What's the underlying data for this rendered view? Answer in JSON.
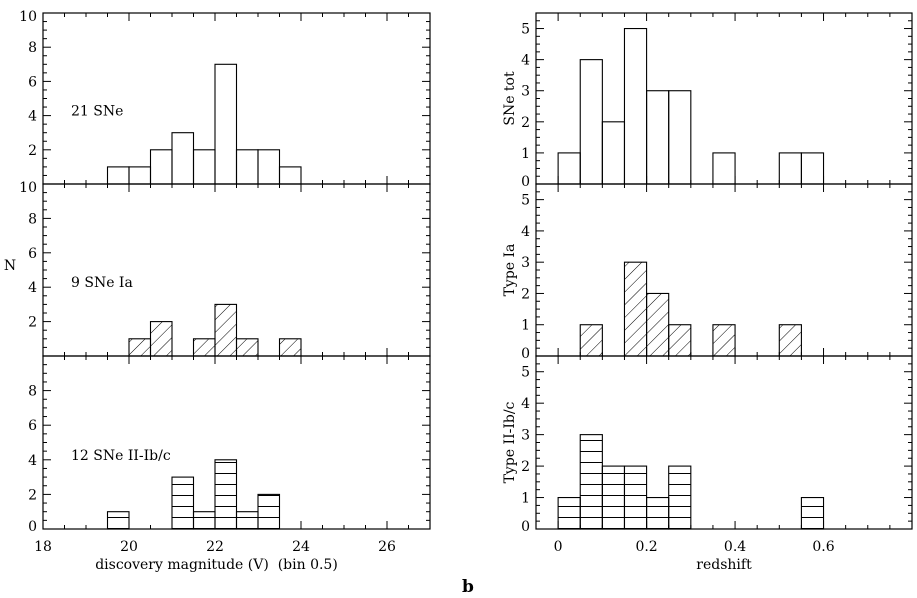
{
  "figure_label": "b",
  "chart_data": [
    {
      "type": "histogram",
      "panel": "left-top",
      "annotation": "21 SNe",
      "fill": "none",
      "bin_width": 0.5,
      "bins": [
        [
          19.75,
          1
        ],
        [
          20.25,
          1
        ],
        [
          20.75,
          2
        ],
        [
          21.25,
          3
        ],
        [
          21.75,
          2
        ],
        [
          22.25,
          7
        ],
        [
          22.75,
          2
        ],
        [
          23.25,
          2
        ],
        [
          23.75,
          1
        ]
      ],
      "xlim": [
        18,
        27
      ],
      "ylim": [
        0,
        10
      ],
      "yticks": [
        "10",
        "8",
        "6",
        "4",
        "2"
      ],
      "xticks": [
        "18",
        "20",
        "22",
        "24",
        "26"
      ]
    },
    {
      "type": "histogram",
      "panel": "left-middle",
      "annotation": "9 SNe Ia",
      "fill": "diagonal-hatch",
      "bin_width": 0.5,
      "bins": [
        [
          20.25,
          1
        ],
        [
          20.75,
          2
        ],
        [
          21.75,
          1
        ],
        [
          22.25,
          3
        ],
        [
          22.75,
          1
        ],
        [
          23.75,
          1
        ]
      ],
      "xlim": [
        18,
        27
      ],
      "ylim": [
        0,
        10
      ],
      "ylabel": "N",
      "yticks": [
        "10",
        "8",
        "6",
        "4",
        "2"
      ],
      "xticks": [
        "18",
        "20",
        "22",
        "24",
        "26"
      ]
    },
    {
      "type": "histogram",
      "panel": "left-bottom",
      "annotation": "12 SNe II-Ib/c",
      "fill": "horizontal-hatch",
      "bin_width": 0.5,
      "bins": [
        [
          19.75,
          1
        ],
        [
          21.25,
          3
        ],
        [
          21.75,
          1
        ],
        [
          22.25,
          4
        ],
        [
          22.75,
          1
        ],
        [
          23.25,
          2
        ]
      ],
      "xlim": [
        18,
        27
      ],
      "ylim": [
        0,
        10
      ],
      "xlabel": "discovery magnitude (V)  (bin 0.5)",
      "yticks": [
        "8",
        "6",
        "4",
        "2",
        "0"
      ],
      "xticks": [
        "18",
        "20",
        "22",
        "24",
        "26"
      ]
    },
    {
      "type": "histogram",
      "panel": "right-top",
      "fill": "none",
      "ylabel": "SNe tot",
      "bin_width": 0.05,
      "bins": [
        [
          0.025,
          1
        ],
        [
          0.075,
          4
        ],
        [
          0.125,
          2
        ],
        [
          0.175,
          5
        ],
        [
          0.225,
          3
        ],
        [
          0.275,
          3
        ],
        [
          0.375,
          1
        ],
        [
          0.525,
          1
        ],
        [
          0.575,
          1
        ]
      ],
      "xlim": [
        -0.05,
        0.8
      ],
      "ylim": [
        0,
        5.5
      ],
      "yticks": [
        "5",
        "4",
        "3",
        "2",
        "1",
        "0"
      ],
      "xticks": [
        "0",
        "0.2",
        "0.4",
        "0.6"
      ]
    },
    {
      "type": "histogram",
      "panel": "right-middle",
      "fill": "diagonal-hatch",
      "ylabel": "Type Ia",
      "bin_width": 0.05,
      "bins": [
        [
          0.075,
          1
        ],
        [
          0.175,
          3
        ],
        [
          0.225,
          2
        ],
        [
          0.275,
          1
        ],
        [
          0.375,
          1
        ],
        [
          0.525,
          1
        ]
      ],
      "xlim": [
        -0.05,
        0.8
      ],
      "ylim": [
        0,
        5.5
      ],
      "yticks": [
        "5",
        "4",
        "3",
        "2",
        "1",
        "0"
      ],
      "xticks": [
        "0",
        "0.2",
        "0.4",
        "0.6"
      ]
    },
    {
      "type": "histogram",
      "panel": "right-bottom",
      "fill": "horizontal-hatch",
      "ylabel": "Type II-Ib/c",
      "xlabel": "redshift",
      "bin_width": 0.05,
      "bins": [
        [
          0.025,
          1
        ],
        [
          0.075,
          3
        ],
        [
          0.125,
          2
        ],
        [
          0.175,
          2
        ],
        [
          0.225,
          1
        ],
        [
          0.275,
          2
        ],
        [
          0.575,
          1
        ]
      ],
      "xlim": [
        -0.05,
        0.8
      ],
      "ylim": [
        0,
        5.5
      ],
      "yticks": [
        "5",
        "4",
        "3",
        "2",
        "1",
        "0"
      ],
      "xticks": [
        "0",
        "0.2",
        "0.4",
        "0.6"
      ]
    }
  ]
}
